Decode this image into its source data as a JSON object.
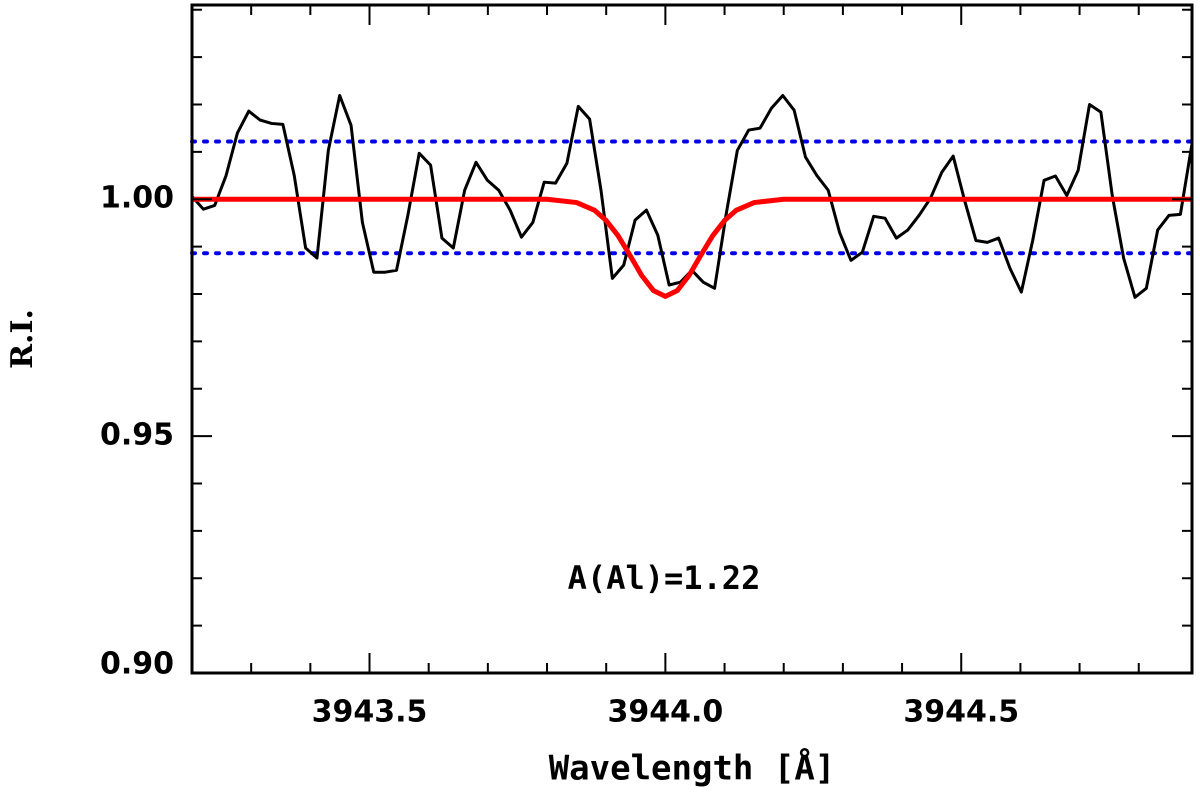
{
  "chart_data": {
    "type": "line",
    "xlabel": "Wavelength [Å]",
    "ylabel": "R.I.",
    "annotation": "A(Al)=1.22",
    "annotation_color": "#ff0000",
    "xlim": [
      3943.2,
      3944.89
    ],
    "ylim": [
      0.9,
      1.041
    ],
    "xticks": [
      3943.5,
      {
        "value": 3944.0,
        "label": "3944.0"
      },
      3944.5
    ],
    "yticks": [
      {
        "value": 0.9,
        "label": "0.90"
      },
      0.95,
      {
        "value": 1.0,
        "label": "1.00"
      }
    ],
    "xminorticks": [
      3943.3,
      3943.4,
      3943.6,
      3943.7,
      3943.8,
      3943.9,
      3944.1,
      3944.2,
      3944.3,
      3944.4,
      3944.6,
      3944.7,
      3944.8
    ],
    "yminorticks": [
      0.91,
      0.92,
      0.93,
      0.94,
      0.96,
      0.97,
      0.98,
      0.99,
      1.01,
      1.02,
      1.03,
      1.04
    ],
    "reference_lines": [
      1.0122,
      0.9886
    ],
    "reference_color": "#0000ee",
    "series": [
      {
        "color": "#000000",
        "x": [
          3943.2,
          3943.2192,
          3943.2384,
          3943.2576,
          3943.2768,
          3943.296,
          3943.3152,
          3943.3344,
          3943.3536,
          3943.3728,
          3943.392,
          3943.4112,
          3943.4304,
          3943.4496,
          3943.4688,
          3943.488,
          3943.5072,
          3943.5264,
          3943.5456,
          3943.5648,
          3943.584,
          3943.6032,
          3943.6224,
          3943.6416,
          3943.6608,
          3943.68,
          3943.6992,
          3943.7184,
          3943.7376,
          3943.7568,
          3943.776,
          3943.7952,
          3943.8144,
          3943.8336,
          3943.8528,
          3943.872,
          3943.8912,
          3943.9104,
          3943.9296,
          3943.9488,
          3943.968,
          3943.9872,
          3944.0064,
          3944.0256,
          3944.0448,
          3944.064,
          3944.0832,
          3944.1024,
          3944.1216,
          3944.1408,
          3944.16,
          3944.1792,
          3944.1984,
          3944.2176,
          3944.2368,
          3944.256,
          3944.2752,
          3944.2944,
          3944.3136,
          3944.3328,
          3944.352,
          3944.3712,
          3944.3904,
          3944.4096,
          3944.4288,
          3944.448,
          3944.4672,
          3944.4864,
          3944.5056,
          3944.5248,
          3944.544,
          3944.5632,
          3944.5824,
          3944.6016,
          3944.6208,
          3944.64,
          3944.6592,
          3944.6784,
          3944.6976,
          3944.7168,
          3944.736,
          3944.7552,
          3944.7744,
          3944.7936,
          3944.8128,
          3944.832,
          3944.8512,
          3944.8704,
          3944.8896
        ],
        "values": [
          1.0006,
          0.9979,
          0.9987,
          1.005,
          1.014,
          1.0186,
          1.0167,
          1.016,
          1.0158,
          1.005,
          0.9897,
          0.9876,
          1.0103,
          1.0219,
          1.0156,
          0.9951,
          0.9846,
          0.9846,
          0.985,
          0.9966,
          1.0097,
          1.0072,
          0.9918,
          0.9897,
          1.0019,
          1.0078,
          1.004,
          1.0019,
          0.9977,
          0.992,
          0.9951,
          1.0036,
          1.0034,
          1.0076,
          1.0196,
          1.0169,
          1.0019,
          0.9833,
          0.9861,
          0.9956,
          0.9977,
          0.9924,
          0.9819,
          0.9825,
          0.985,
          0.9825,
          0.9812,
          0.9966,
          1.0103,
          1.0146,
          1.015,
          1.0192,
          1.0219,
          1.0188,
          1.0089,
          1.005,
          1.0019,
          0.993,
          0.9871,
          0.9888,
          0.9964,
          0.996,
          0.9918,
          0.9935,
          0.9966,
          1.0002,
          1.0057,
          1.0091,
          0.9998,
          0.9913,
          0.9909,
          0.9918,
          0.9854,
          0.9804,
          0.9913,
          1.004,
          1.0049,
          1.0008,
          1.0061,
          1.02,
          1.0184,
          1.0008,
          0.9876,
          0.9793,
          0.9812,
          0.9935,
          0.9966,
          0.9968,
          1.0114
        ]
      },
      {
        "color": "#ff0000",
        "x": [
          3943.2,
          3943.8,
          3943.85,
          3943.88,
          3943.9,
          3943.92,
          3943.94,
          3943.96,
          3943.98,
          3944.0,
          3944.02,
          3944.04,
          3944.06,
          3944.08,
          3944.1,
          3944.12,
          3944.15,
          3944.2,
          3944.89
        ],
        "values": [
          1.0,
          1.0,
          0.9993,
          0.9977,
          0.9955,
          0.9923,
          0.9882,
          0.9839,
          0.9807,
          0.9795,
          0.9807,
          0.9839,
          0.9882,
          0.9923,
          0.9955,
          0.9977,
          0.9993,
          1.0,
          1.0
        ]
      }
    ]
  }
}
